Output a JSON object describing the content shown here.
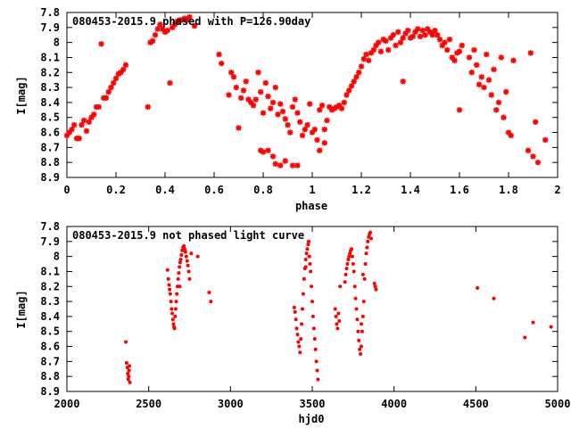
{
  "chart_data": [
    {
      "type": "scatter",
      "title": "080453-2015.9 phased with P=126.90day",
      "xlabel": "phase",
      "ylabel": "I[mag]",
      "xlim": [
        0,
        2
      ],
      "ylim": [
        7.8,
        8.9
      ],
      "y_inverted": true,
      "grid": false,
      "color": "#ff0000",
      "marker": "star",
      "x_ticks": [
        "0",
        "0.2",
        "0.4",
        "0.6",
        "0.8",
        "1",
        "1.2",
        "1.4",
        "1.6",
        "1.8",
        "2"
      ],
      "y_ticks": [
        "7.8",
        "7.9",
        "8",
        "8.1",
        "8.2",
        "8.3",
        "8.4",
        "8.5",
        "8.6",
        "8.7",
        "8.8",
        "8.9"
      ],
      "points": [
        [
          0.0,
          8.62
        ],
        [
          0.01,
          8.6
        ],
        [
          0.02,
          8.58
        ],
        [
          0.03,
          8.55
        ],
        [
          0.04,
          8.64
        ],
        [
          0.05,
          8.64
        ],
        [
          0.06,
          8.55
        ],
        [
          0.07,
          8.52
        ],
        [
          0.08,
          8.59
        ],
        [
          0.09,
          8.53
        ],
        [
          0.1,
          8.5
        ],
        [
          0.11,
          8.48
        ],
        [
          0.12,
          8.43
        ],
        [
          0.13,
          8.43
        ],
        [
          0.14,
          8.01
        ],
        [
          0.15,
          8.37
        ],
        [
          0.16,
          8.37
        ],
        [
          0.17,
          8.33
        ],
        [
          0.18,
          8.3
        ],
        [
          0.19,
          8.27
        ],
        [
          0.2,
          8.24
        ],
        [
          0.21,
          8.21
        ],
        [
          0.22,
          8.2
        ],
        [
          0.23,
          8.18
        ],
        [
          0.24,
          8.15
        ],
        [
          0.33,
          8.43
        ],
        [
          0.34,
          8.0
        ],
        [
          0.35,
          7.99
        ],
        [
          0.36,
          7.95
        ],
        [
          0.37,
          7.91
        ],
        [
          0.38,
          7.88
        ],
        [
          0.39,
          7.91
        ],
        [
          0.4,
          7.93
        ],
        [
          0.41,
          7.92
        ],
        [
          0.42,
          8.27
        ],
        [
          0.43,
          7.9
        ],
        [
          0.44,
          7.88
        ],
        [
          0.45,
          7.86
        ],
        [
          0.46,
          7.85
        ],
        [
          0.47,
          7.85
        ],
        [
          0.48,
          7.84
        ],
        [
          0.49,
          7.85
        ],
        [
          0.5,
          7.83
        ],
        [
          0.52,
          7.89
        ],
        [
          0.62,
          8.08
        ],
        [
          0.63,
          8.14
        ],
        [
          0.66,
          8.35
        ],
        [
          0.67,
          8.2
        ],
        [
          0.68,
          8.23
        ],
        [
          0.69,
          8.3
        ],
        [
          0.7,
          8.57
        ],
        [
          0.71,
          8.37
        ],
        [
          0.72,
          8.32
        ],
        [
          0.73,
          8.26
        ],
        [
          0.74,
          8.38
        ],
        [
          0.75,
          8.4
        ],
        [
          0.76,
          8.42
        ],
        [
          0.77,
          8.38
        ],
        [
          0.78,
          8.2
        ],
        [
          0.79,
          8.33
        ],
        [
          0.8,
          8.47
        ],
        [
          0.81,
          8.27
        ],
        [
          0.82,
          8.36
        ],
        [
          0.83,
          8.44
        ],
        [
          0.84,
          8.4
        ],
        [
          0.79,
          8.72
        ],
        [
          0.8,
          8.73
        ],
        [
          0.82,
          8.72
        ],
        [
          0.84,
          8.76
        ],
        [
          0.85,
          8.81
        ],
        [
          0.87,
          8.82
        ],
        [
          0.89,
          8.79
        ],
        [
          0.92,
          8.82
        ],
        [
          0.94,
          8.82
        ],
        [
          0.85,
          8.3
        ],
        [
          0.86,
          8.48
        ],
        [
          0.87,
          8.41
        ],
        [
          0.88,
          8.46
        ],
        [
          0.89,
          8.51
        ],
        [
          0.9,
          8.55
        ],
        [
          0.91,
          8.6
        ],
        [
          0.92,
          8.43
        ],
        [
          0.93,
          8.38
        ],
        [
          0.94,
          8.47
        ],
        [
          0.95,
          8.53
        ],
        [
          0.96,
          8.62
        ],
        [
          0.97,
          8.58
        ],
        [
          0.98,
          8.55
        ],
        [
          0.99,
          8.41
        ],
        [
          1.0,
          8.6
        ],
        [
          1.01,
          8.58
        ],
        [
          1.02,
          8.65
        ],
        [
          1.03,
          8.45
        ],
        [
          1.04,
          8.42
        ],
        [
          1.05,
          8.58
        ],
        [
          1.06,
          8.52
        ],
        [
          1.03,
          8.72
        ],
        [
          1.05,
          8.67
        ],
        [
          1.07,
          8.43
        ],
        [
          1.08,
          8.45
        ],
        [
          1.09,
          8.44
        ],
        [
          1.1,
          8.43
        ],
        [
          1.11,
          8.42
        ],
        [
          1.12,
          8.44
        ],
        [
          1.13,
          8.4
        ],
        [
          1.14,
          8.35
        ],
        [
          1.15,
          8.32
        ],
        [
          1.16,
          8.29
        ],
        [
          1.17,
          8.26
        ],
        [
          1.18,
          8.23
        ],
        [
          1.19,
          8.2
        ],
        [
          1.2,
          8.16
        ],
        [
          1.21,
          8.11
        ],
        [
          1.22,
          8.08
        ],
        [
          1.23,
          8.12
        ],
        [
          1.24,
          8.07
        ],
        [
          1.25,
          8.05
        ],
        [
          1.26,
          8.02
        ],
        [
          1.27,
          8.0
        ],
        [
          1.28,
          8.06
        ],
        [
          1.29,
          7.98
        ],
        [
          1.3,
          7.99
        ],
        [
          1.31,
          8.05
        ],
        [
          1.32,
          7.97
        ],
        [
          1.33,
          7.95
        ],
        [
          1.34,
          8.02
        ],
        [
          1.35,
          7.93
        ],
        [
          1.36,
          8.0
        ],
        [
          1.37,
          7.97
        ],
        [
          1.38,
          7.94
        ],
        [
          1.39,
          7.92
        ],
        [
          1.4,
          7.97
        ],
        [
          1.41,
          7.96
        ],
        [
          1.42,
          7.93
        ],
        [
          1.43,
          7.91
        ],
        [
          1.44,
          7.96
        ],
        [
          1.45,
          7.92
        ],
        [
          1.46,
          7.95
        ],
        [
          1.47,
          7.91
        ],
        [
          1.48,
          7.93
        ],
        [
          1.49,
          7.95
        ],
        [
          1.5,
          7.92
        ],
        [
          1.51,
          7.95
        ],
        [
          1.52,
          7.98
        ],
        [
          1.53,
          8.02
        ],
        [
          1.54,
          8.0
        ],
        [
          1.55,
          8.05
        ],
        [
          1.56,
          7.98
        ],
        [
          1.57,
          8.1
        ],
        [
          1.58,
          8.12
        ],
        [
          1.59,
          8.07
        ],
        [
          1.6,
          8.06
        ],
        [
          1.61,
          8.02
        ],
        [
          1.37,
          8.26
        ],
        [
          1.6,
          8.45
        ],
        [
          1.64,
          8.1
        ],
        [
          1.65,
          8.2
        ],
        [
          1.66,
          8.05
        ],
        [
          1.67,
          8.15
        ],
        [
          1.68,
          8.28
        ],
        [
          1.69,
          8.23
        ],
        [
          1.7,
          8.3
        ],
        [
          1.71,
          8.08
        ],
        [
          1.72,
          8.25
        ],
        [
          1.73,
          8.35
        ],
        [
          1.74,
          8.18
        ],
        [
          1.75,
          8.45
        ],
        [
          1.76,
          8.4
        ],
        [
          1.77,
          8.1
        ],
        [
          1.78,
          8.5
        ],
        [
          1.79,
          8.33
        ],
        [
          1.8,
          8.6
        ],
        [
          1.81,
          8.62
        ],
        [
          1.82,
          8.12
        ],
        [
          1.88,
          8.72
        ],
        [
          1.89,
          8.07
        ],
        [
          1.9,
          8.76
        ],
        [
          1.91,
          8.53
        ],
        [
          1.92,
          8.8
        ],
        [
          1.95,
          8.65
        ]
      ]
    },
    {
      "type": "scatter",
      "title": "080453-2015.9 not phased light curve",
      "xlabel": "hjd0",
      "ylabel": "I[mag]",
      "xlim": [
        2000,
        5000
      ],
      "ylim": [
        7.8,
        8.9
      ],
      "y_inverted": true,
      "grid": false,
      "color": "#ff0000",
      "marker": "dot",
      "x_ticks": [
        "2000",
        "2500",
        "3000",
        "3500",
        "4000",
        "4500",
        "5000"
      ],
      "y_ticks": [
        "7.8",
        "7.9",
        "8",
        "8.1",
        "8.2",
        "8.3",
        "8.4",
        "8.5",
        "8.6",
        "8.7",
        "8.8",
        "8.9"
      ],
      "points": [
        [
          2360,
          8.57
        ],
        [
          2365,
          8.71
        ],
        [
          2370,
          8.74
        ],
        [
          2372,
          8.78
        ],
        [
          2375,
          8.82
        ],
        [
          2378,
          8.8
        ],
        [
          2380,
          8.76
        ],
        [
          2382,
          8.73
        ],
        [
          2385,
          8.84
        ],
        [
          2615,
          8.09
        ],
        [
          2620,
          8.15
        ],
        [
          2625,
          8.19
        ],
        [
          2628,
          8.22
        ],
        [
          2632,
          8.25
        ],
        [
          2636,
          8.3
        ],
        [
          2640,
          8.35
        ],
        [
          2644,
          8.38
        ],
        [
          2648,
          8.42
        ],
        [
          2652,
          8.45
        ],
        [
          2655,
          8.47
        ],
        [
          2658,
          8.48
        ],
        [
          2662,
          8.4
        ],
        [
          2665,
          8.35
        ],
        [
          2668,
          8.3
        ],
        [
          2672,
          8.25
        ],
        [
          2676,
          8.2
        ],
        [
          2680,
          8.15
        ],
        [
          2684,
          8.11
        ],
        [
          2688,
          8.07
        ],
        [
          2692,
          8.04
        ],
        [
          2696,
          8.02
        ],
        [
          2700,
          7.99
        ],
        [
          2705,
          7.96
        ],
        [
          2710,
          7.94
        ],
        [
          2715,
          7.93
        ],
        [
          2720,
          7.95
        ],
        [
          2725,
          7.97
        ],
        [
          2730,
          8.0
        ],
        [
          2735,
          8.03
        ],
        [
          2740,
          8.06
        ],
        [
          2745,
          8.1
        ],
        [
          2750,
          8.15
        ],
        [
          2690,
          8.2
        ],
        [
          2760,
          7.98
        ],
        [
          2800,
          8.0
        ],
        [
          2870,
          8.24
        ],
        [
          2880,
          8.3
        ],
        [
          3390,
          8.34
        ],
        [
          3395,
          8.37
        ],
        [
          3400,
          8.42
        ],
        [
          3405,
          8.48
        ],
        [
          3410,
          8.52
        ],
        [
          3415,
          8.57
        ],
        [
          3420,
          8.6
        ],
        [
          3425,
          8.64
        ],
        [
          3430,
          8.55
        ],
        [
          3435,
          8.45
        ],
        [
          3440,
          8.35
        ],
        [
          3445,
          8.25
        ],
        [
          3450,
          8.15
        ],
        [
          3455,
          8.08
        ],
        [
          3460,
          8.02
        ],
        [
          3465,
          7.98
        ],
        [
          3470,
          7.95
        ],
        [
          3475,
          7.92
        ],
        [
          3478,
          7.9
        ],
        [
          3482,
          8.0
        ],
        [
          3486,
          8.05
        ],
        [
          3490,
          8.1
        ],
        [
          3495,
          8.2
        ],
        [
          3500,
          8.3
        ],
        [
          3505,
          8.4
        ],
        [
          3510,
          8.48
        ],
        [
          3515,
          8.55
        ],
        [
          3520,
          8.62
        ],
        [
          3525,
          8.7
        ],
        [
          3530,
          8.76
        ],
        [
          3535,
          8.82
        ],
        [
          3460,
          8.07
        ],
        [
          3640,
          8.35
        ],
        [
          3645,
          8.4
        ],
        [
          3650,
          8.45
        ],
        [
          3655,
          8.48
        ],
        [
          3660,
          8.38
        ],
        [
          3665,
          8.43
        ],
        [
          3670,
          8.2
        ],
        [
          3700,
          8.17
        ],
        [
          3705,
          8.12
        ],
        [
          3710,
          8.08
        ],
        [
          3715,
          8.05
        ],
        [
          3720,
          8.02
        ],
        [
          3725,
          8.0
        ],
        [
          3730,
          7.98
        ],
        [
          3735,
          7.96
        ],
        [
          3740,
          7.95
        ],
        [
          3745,
          8.0
        ],
        [
          3750,
          8.05
        ],
        [
          3755,
          8.1
        ],
        [
          3760,
          8.2
        ],
        [
          3765,
          8.28
        ],
        [
          3770,
          8.35
        ],
        [
          3775,
          8.42
        ],
        [
          3780,
          8.5
        ],
        [
          3785,
          8.56
        ],
        [
          3790,
          8.62
        ],
        [
          3795,
          8.65
        ],
        [
          3800,
          8.6
        ],
        [
          3805,
          8.5
        ],
        [
          3810,
          8.4
        ],
        [
          3815,
          8.3
        ],
        [
          3820,
          8.15
        ],
        [
          3825,
          8.05
        ],
        [
          3830,
          7.98
        ],
        [
          3835,
          7.94
        ],
        [
          3840,
          7.9
        ],
        [
          3845,
          7.87
        ],
        [
          3850,
          7.85
        ],
        [
          3855,
          7.84
        ],
        [
          3860,
          7.88
        ],
        [
          3880,
          8.18
        ],
        [
          3885,
          8.2
        ],
        [
          3890,
          8.22
        ],
        [
          3800,
          8.45
        ],
        [
          3810,
          8.12
        ],
        [
          4510,
          8.21
        ],
        [
          4610,
          8.28
        ],
        [
          4800,
          8.54
        ],
        [
          4850,
          8.44
        ],
        [
          4960,
          8.47
        ]
      ]
    }
  ]
}
